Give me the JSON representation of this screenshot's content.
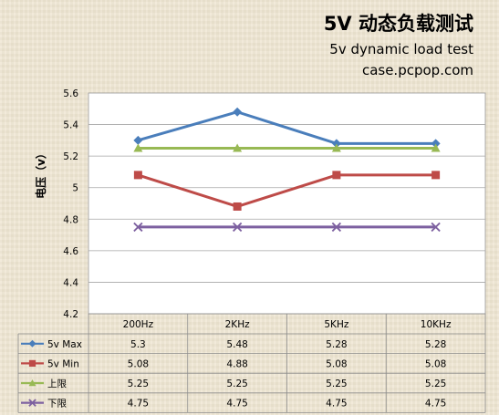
{
  "header": {
    "title": "5V 动态负载测试",
    "subtitle": "5v dynamic load test",
    "source": "case.pcpop.com"
  },
  "chart_data": {
    "type": "line",
    "title": "5V 动态负载测试",
    "subtitle": "5v dynamic load test",
    "ylabel": "电压（v）",
    "xlabel": "",
    "categories": [
      "200Hz",
      "2KHz",
      "5KHz",
      "10KHz"
    ],
    "ylim": [
      4.2,
      5.6
    ],
    "yticks": [
      "4.2",
      "4.4",
      "4.6",
      "4.8",
      "5",
      "5.2",
      "5.4",
      "5.6"
    ],
    "grid": true,
    "legend": "data-table",
    "series": [
      {
        "name": "5v Max",
        "color": "#4a7ebb",
        "marker": "diamond",
        "values": [
          5.3,
          5.48,
          5.28,
          5.28
        ],
        "labels": [
          "5.3",
          "5.48",
          "5.28",
          "5.28"
        ]
      },
      {
        "name": "5v Min",
        "color": "#be4b48",
        "marker": "square",
        "values": [
          5.08,
          4.88,
          5.08,
          5.08
        ],
        "labels": [
          "5.08",
          "4.88",
          "5.08",
          "5.08"
        ]
      },
      {
        "name": "上限",
        "color": "#98b954",
        "marker": "triangle",
        "values": [
          5.25,
          5.25,
          5.25,
          5.25
        ],
        "labels": [
          "5.25",
          "5.25",
          "5.25",
          "5.25"
        ]
      },
      {
        "name": "下限",
        "color": "#7d60a0",
        "marker": "cross",
        "values": [
          4.75,
          4.75,
          4.75,
          4.75
        ],
        "labels": [
          "4.75",
          "4.75",
          "4.75",
          "4.75"
        ]
      }
    ]
  }
}
